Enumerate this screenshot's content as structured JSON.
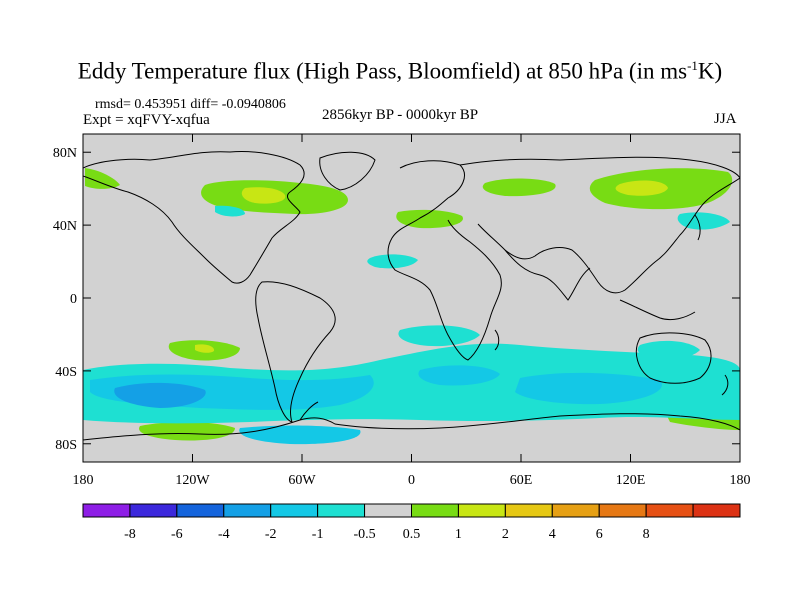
{
  "title": {
    "main": "Eddy Temperature flux (High Pass, Bloomfield) at 850 hPa (in ms",
    "sup": "-1",
    "end": "K)"
  },
  "stats": {
    "line1": "rmsd= 0.453951 diff= -0.0940806",
    "line2": "Expt = xqFVY-xqfua"
  },
  "period": "2856kyr BP - 0000kyr BP",
  "season": "JJA",
  "axes": {
    "y_ticks": [
      {
        "value": 80,
        "label": "80N"
      },
      {
        "value": 40,
        "label": "40N"
      },
      {
        "value": 0,
        "label": "0"
      },
      {
        "value": -40,
        "label": "40S"
      },
      {
        "value": -80,
        "label": "80S"
      }
    ],
    "x_ticks": [
      {
        "value": -180,
        "label": "180"
      },
      {
        "value": -120,
        "label": "120W"
      },
      {
        "value": -60,
        "label": "60W"
      },
      {
        "value": 0,
        "label": "0"
      },
      {
        "value": 60,
        "label": "60E"
      },
      {
        "value": 120,
        "label": "120E"
      },
      {
        "value": 180,
        "label": "180"
      }
    ],
    "lon_range": [
      -180,
      180
    ],
    "lat_range": [
      -90,
      90
    ]
  },
  "colorbar": {
    "colors": [
      "#8e1ee6",
      "#3c28dc",
      "#1464dc",
      "#14a0e6",
      "#14c8e6",
      "#1ee0d2",
      "#d2d2d2",
      "#78dc14",
      "#c8e614",
      "#e6c814",
      "#e6a014",
      "#e67814",
      "#e65014",
      "#dc3214"
    ],
    "labels": [
      "-8",
      "-6",
      "-4",
      "-2",
      "-1",
      "-0.5",
      "0.5",
      "1",
      "2",
      "4",
      "6",
      "8"
    ]
  },
  "colors": {
    "background_field": "#d2d2d2",
    "coast": "#000000"
  }
}
